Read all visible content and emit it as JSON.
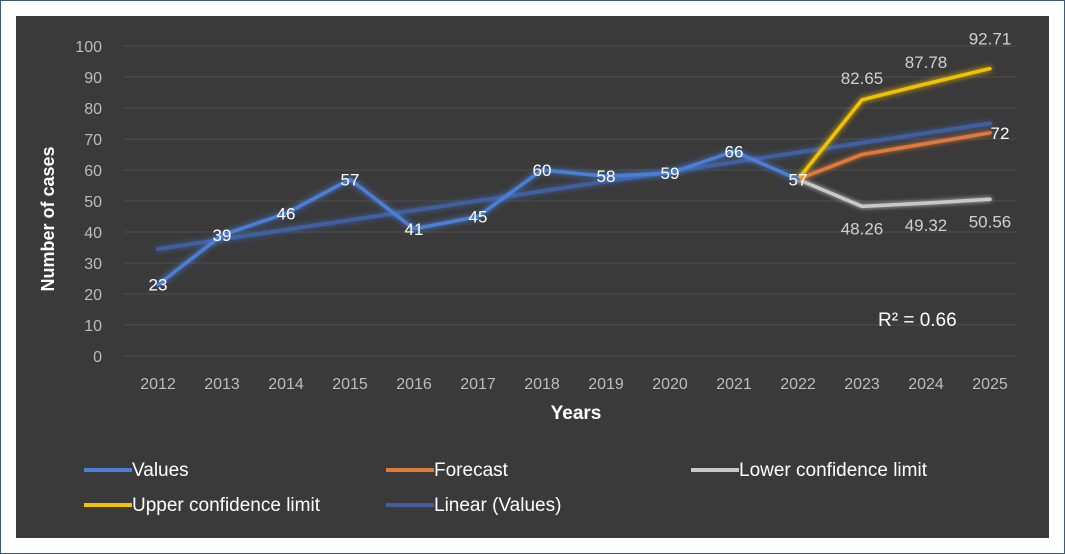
{
  "chart_data": {
    "type": "line",
    "xlabel": "Years",
    "ylabel": "Number of cases",
    "ylim": [
      0,
      100
    ],
    "yticks": [
      "0",
      "10",
      "20",
      "30",
      "40",
      "50",
      "60",
      "70",
      "80",
      "90",
      "100"
    ],
    "categories": [
      "2012",
      "2013",
      "2014",
      "2015",
      "2016",
      "2017",
      "2018",
      "2019",
      "2020",
      "2021",
      "2022",
      "2023",
      "2024",
      "2025"
    ],
    "grid": true,
    "legend_position": "bottom",
    "annotation": "R² = 0.66",
    "series": [
      {
        "name": "Values",
        "color": "#4a7fd6",
        "x": [
          "2012",
          "2013",
          "2014",
          "2015",
          "2016",
          "2017",
          "2018",
          "2019",
          "2020",
          "2021",
          "2022"
        ],
        "values": [
          23,
          39,
          46,
          57,
          41,
          45,
          60,
          58,
          59,
          66,
          57
        ],
        "labels": [
          "23",
          "39",
          "46",
          "57",
          "41",
          "45",
          "60",
          "58",
          "59",
          "66",
          "57"
        ]
      },
      {
        "name": "Forecast",
        "color": "#e07a3a",
        "x": [
          "2022",
          "2023",
          "2024",
          "2025"
        ],
        "values": [
          57,
          65,
          68.5,
          72
        ],
        "labels": [
          "",
          "",
          "",
          "72"
        ]
      },
      {
        "name": "Lower confidence limit",
        "color": "#c8c8c8",
        "x": [
          "2022",
          "2023",
          "2024",
          "2025"
        ],
        "values": [
          57,
          48.26,
          49.32,
          50.56
        ],
        "labels": [
          "",
          "48.26",
          "49.32",
          "50.56"
        ]
      },
      {
        "name": "Upper confidence limit",
        "color": "#f2c200",
        "x": [
          "2022",
          "2023",
          "2024",
          "2025"
        ],
        "values": [
          57,
          82.65,
          87.78,
          92.71
        ],
        "labels": [
          "",
          "82.65",
          "87.78",
          "92.71"
        ]
      },
      {
        "name": "Linear (Values)",
        "color": "#3f5f9e",
        "x": [
          "2012",
          "2025"
        ],
        "values": [
          34.5,
          75
        ],
        "labels": [
          "",
          ""
        ]
      }
    ]
  }
}
